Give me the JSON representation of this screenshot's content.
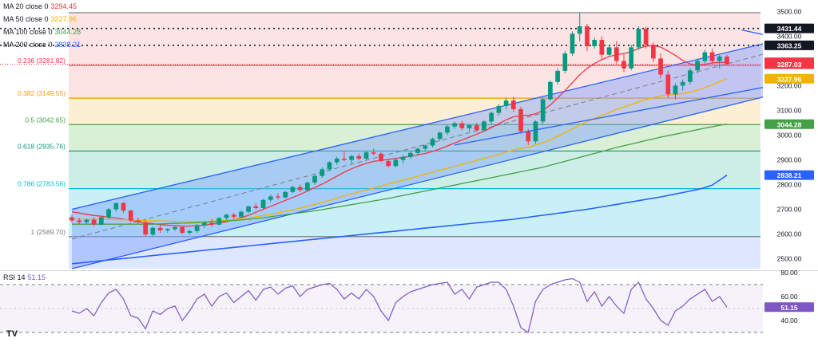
{
  "legend": {
    "ma20": {
      "label": "MA 20 close 0",
      "value": "3294.45",
      "color": "#f23645"
    },
    "ma50": {
      "label": "MA 50 close 0",
      "value": "3227.96",
      "color": "#f0b400"
    },
    "ma100": {
      "label": "MA 100 close 0",
      "value": "3044.28",
      "color": "#43a047"
    },
    "ma200": {
      "label": "MA 200 close 0",
      "value": "2838.21",
      "color": "#2962ff"
    }
  },
  "rsi_legend": {
    "label": "RSI 14",
    "value": "51.15"
  },
  "logo_text": "TV",
  "chart_data": {
    "type": "candlestick",
    "y_axis": {
      "min": 2460,
      "max": 3540,
      "ticks": [
        2500,
        2600,
        2700,
        2800,
        2900,
        3000,
        3100,
        3200,
        3300,
        3400,
        3500
      ]
    },
    "fibonacci": [
      {
        "level": "1",
        "value": 2589.7,
        "label": "1 (2589.70)",
        "color": "#787b86",
        "fill": "#e8e8ec"
      },
      {
        "level": "0.786",
        "value": 2783.56,
        "label": "0.786 (2783.56)",
        "color": "#00bcd4",
        "fill": "#c9f0f6"
      },
      {
        "level": "0.618",
        "value": 2935.76,
        "label": "0.618 (2935.76)",
        "color": "#089981",
        "fill": "#cdeee6"
      },
      {
        "level": "0.5",
        "value": 3042.65,
        "label": "0.5 (3042.65)",
        "color": "#43a047",
        "fill": "#d9efd6"
      },
      {
        "level": "0.382",
        "value": 3149.55,
        "label": "0.382 (3149.55)",
        "color": "#ff9800",
        "fill": "#fdefd4"
      },
      {
        "level": "0.236",
        "value": 3281.82,
        "label": "0.236 (3281.82)",
        "color": "#f23645",
        "fill": "#fde4e4"
      },
      {
        "level": "0",
        "value": 3495.0,
        "label": "",
        "color": "#787b86",
        "fill": "#fde4e4"
      }
    ],
    "below_fib_fill": "#dfe6ff",
    "horizontal_levels": [
      {
        "value": 3431.44,
        "label": "3431.44",
        "color": "#131722",
        "style": "dotted"
      },
      {
        "value": 3363.25,
        "label": "3363.25",
        "color": "#131722",
        "style": "dotted"
      }
    ],
    "price_tags": [
      {
        "value": 3294.45,
        "label": "3294.45",
        "color": "#f23645"
      },
      {
        "value": 3287.03,
        "label": "3287.03",
        "color": "#f23645"
      },
      {
        "value": 3227.96,
        "label": "3227.96",
        "color": "#f0b400"
      },
      {
        "value": 3044.28,
        "label": "3044.28",
        "color": "#43a047"
      },
      {
        "value": 2838.21,
        "label": "2838.21",
        "color": "#2962ff"
      }
    ],
    "current_price": 3287.03,
    "channel": {
      "upper": [
        [
          0,
          2700
        ],
        [
          115,
          3520
        ]
      ],
      "lower": [
        [
          0,
          2460
        ],
        [
          115,
          3310
        ]
      ],
      "mid": [
        [
          0,
          2580
        ],
        [
          115,
          3495
        ]
      ],
      "fill": "#7aa0ff"
    },
    "trendlines": [
      {
        "from": [
          52,
          2960
        ],
        "to": [
          115,
          3310
        ],
        "color": "#2962ff"
      },
      {
        "from": [
          91,
          3425
        ],
        "to": [
          115,
          3275
        ],
        "color": "#2962ff"
      }
    ],
    "candles_ohlc": [
      [
        2668,
        2678,
        2645,
        2655
      ],
      [
        2655,
        2665,
        2638,
        2648
      ],
      [
        2648,
        2662,
        2640,
        2658
      ],
      [
        2658,
        2668,
        2632,
        2638
      ],
      [
        2638,
        2672,
        2635,
        2668
      ],
      [
        2668,
        2705,
        2660,
        2700
      ],
      [
        2700,
        2728,
        2690,
        2725
      ],
      [
        2725,
        2730,
        2685,
        2695
      ],
      [
        2695,
        2698,
        2648,
        2655
      ],
      [
        2655,
        2665,
        2640,
        2648
      ],
      [
        2648,
        2655,
        2590,
        2598
      ],
      [
        2598,
        2630,
        2590,
        2625
      ],
      [
        2625,
        2635,
        2605,
        2615
      ],
      [
        2615,
        2625,
        2605,
        2620
      ],
      [
        2620,
        2632,
        2612,
        2628
      ],
      [
        2628,
        2632,
        2600,
        2605
      ],
      [
        2605,
        2618,
        2598,
        2612
      ],
      [
        2612,
        2640,
        2605,
        2635
      ],
      [
        2635,
        2650,
        2625,
        2645
      ],
      [
        2645,
        2660,
        2630,
        2638
      ],
      [
        2638,
        2668,
        2635,
        2665
      ],
      [
        2665,
        2682,
        2658,
        2678
      ],
      [
        2678,
        2685,
        2660,
        2670
      ],
      [
        2670,
        2695,
        2665,
        2690
      ],
      [
        2690,
        2715,
        2685,
        2712
      ],
      [
        2712,
        2725,
        2700,
        2705
      ],
      [
        2705,
        2742,
        2700,
        2738
      ],
      [
        2738,
        2760,
        2730,
        2752
      ],
      [
        2752,
        2765,
        2740,
        2748
      ],
      [
        2748,
        2775,
        2745,
        2770
      ],
      [
        2770,
        2795,
        2765,
        2790
      ],
      [
        2790,
        2800,
        2770,
        2778
      ],
      [
        2778,
        2812,
        2772,
        2808
      ],
      [
        2808,
        2840,
        2800,
        2835
      ],
      [
        2835,
        2870,
        2828,
        2862
      ],
      [
        2862,
        2895,
        2855,
        2890
      ],
      [
        2890,
        2912,
        2880,
        2905
      ],
      [
        2905,
        2935,
        2895,
        2900
      ],
      [
        2900,
        2920,
        2885,
        2915
      ],
      [
        2915,
        2925,
        2898,
        2905
      ],
      [
        2905,
        2935,
        2900,
        2930
      ],
      [
        2930,
        2945,
        2918,
        2925
      ],
      [
        2925,
        2930,
        2890,
        2895
      ],
      [
        2895,
        2900,
        2870,
        2875
      ],
      [
        2875,
        2905,
        2870,
        2900
      ],
      [
        2900,
        2920,
        2885,
        2912
      ],
      [
        2912,
        2935,
        2905,
        2928
      ],
      [
        2928,
        2950,
        2920,
        2945
      ],
      [
        2945,
        2962,
        2935,
        2958
      ],
      [
        2958,
        2990,
        2950,
        2985
      ],
      [
        2985,
        3015,
        2978,
        3010
      ],
      [
        3010,
        3040,
        3000,
        3035
      ],
      [
        3035,
        3055,
        3025,
        3048
      ],
      [
        3048,
        3058,
        3020,
        3028
      ],
      [
        3028,
        3045,
        3015,
        3040
      ],
      [
        3040,
        3050,
        3015,
        3020
      ],
      [
        3020,
        3060,
        3015,
        3055
      ],
      [
        3055,
        3095,
        3045,
        3090
      ],
      [
        3090,
        3125,
        3080,
        3118
      ],
      [
        3118,
        3150,
        3105,
        3140
      ],
      [
        3140,
        3155,
        3095,
        3105
      ],
      [
        3105,
        3115,
        3005,
        3015
      ],
      [
        3015,
        3025,
        2960,
        2975
      ],
      [
        2975,
        3060,
        2965,
        3055
      ],
      [
        3055,
        3150,
        3045,
        3145
      ],
      [
        3145,
        3220,
        3140,
        3215
      ],
      [
        3215,
        3270,
        3205,
        3260
      ],
      [
        3260,
        3340,
        3250,
        3330
      ],
      [
        3330,
        3420,
        3320,
        3410
      ],
      [
        3410,
        3495,
        3380,
        3440
      ],
      [
        3440,
        3450,
        3340,
        3360
      ],
      [
        3360,
        3395,
        3350,
        3385
      ],
      [
        3385,
        3400,
        3310,
        3325
      ],
      [
        3325,
        3365,
        3318,
        3355
      ],
      [
        3355,
        3380,
        3290,
        3300
      ],
      [
        3300,
        3330,
        3255,
        3270
      ],
      [
        3270,
        3365,
        3262,
        3355
      ],
      [
        3355,
        3440,
        3345,
        3430
      ],
      [
        3430,
        3438,
        3350,
        3365
      ],
      [
        3365,
        3375,
        3295,
        3310
      ],
      [
        3310,
        3330,
        3230,
        3245
      ],
      [
        3245,
        3260,
        3150,
        3165
      ],
      [
        3165,
        3210,
        3145,
        3200
      ],
      [
        3200,
        3225,
        3180,
        3215
      ],
      [
        3215,
        3270,
        3205,
        3262
      ],
      [
        3262,
        3310,
        3250,
        3300
      ],
      [
        3300,
        3345,
        3290,
        3335
      ],
      [
        3335,
        3350,
        3290,
        3300
      ],
      [
        3300,
        3325,
        3270,
        3318
      ],
      [
        3318,
        3325,
        3280,
        3287
      ]
    ],
    "rsi": {
      "range": [
        20,
        80
      ],
      "ticks": [
        40,
        60,
        80
      ],
      "overbought": 70,
      "oversold": 30,
      "current": 51.15,
      "values": [
        48,
        46,
        50,
        44,
        55,
        63,
        66,
        58,
        44,
        42,
        33,
        48,
        45,
        50,
        52,
        40,
        48,
        58,
        62,
        52,
        60,
        63,
        55,
        60,
        65,
        57,
        66,
        68,
        62,
        67,
        69,
        60,
        66,
        68,
        70,
        71,
        66,
        58,
        63,
        58,
        66,
        60,
        48,
        40,
        55,
        60,
        64,
        66,
        68,
        70,
        71,
        72,
        62,
        66,
        58,
        68,
        70,
        72,
        72,
        66,
        52,
        34,
        30,
        56,
        66,
        70,
        72,
        74,
        75,
        72,
        56,
        64,
        52,
        60,
        52,
        46,
        66,
        72,
        58,
        50,
        40,
        36,
        48,
        52,
        58,
        62,
        66,
        56,
        60,
        51
      ]
    },
    "ma_series": {
      "ma20": [
        2690,
        2685,
        2680,
        2675,
        2672,
        2668,
        2665,
        2660,
        2656,
        2650,
        2646,
        2642,
        2638,
        2636,
        2634,
        2632,
        2632,
        2634,
        2636,
        2640,
        2644,
        2650,
        2658,
        2666,
        2676,
        2688,
        2700,
        2712,
        2724,
        2736,
        2748,
        2760,
        2774,
        2788,
        2802,
        2818,
        2834,
        2850,
        2864,
        2876,
        2886,
        2894,
        2898,
        2902,
        2906,
        2910,
        2914,
        2920,
        2926,
        2934,
        2944,
        2956,
        2968,
        2980,
        2992,
        3004,
        3016,
        3030,
        3046,
        3062,
        3074,
        3078,
        3080,
        3086,
        3100,
        3122,
        3150,
        3180,
        3212,
        3244,
        3270,
        3290,
        3306,
        3318,
        3325,
        3330,
        3338,
        3350,
        3360,
        3362,
        3356,
        3340,
        3322,
        3302,
        3288,
        3282,
        3286,
        3292,
        3294,
        3294.45
      ],
      "ma50": [
        2660,
        2660,
        2660,
        2660,
        2660,
        2659,
        2658,
        2658,
        2657,
        2656,
        2655,
        2654,
        2653,
        2652,
        2651,
        2650,
        2650,
        2650,
        2651,
        2652,
        2654,
        2656,
        2659,
        2662,
        2666,
        2670,
        2675,
        2680,
        2686,
        2692,
        2698,
        2705,
        2712,
        2720,
        2728,
        2736,
        2745,
        2754,
        2762,
        2770,
        2778,
        2786,
        2794,
        2802,
        2810,
        2818,
        2826,
        2834,
        2842,
        2850,
        2858,
        2866,
        2874,
        2882,
        2890,
        2898,
        2906,
        2914,
        2922,
        2932,
        2940,
        2946,
        2952,
        2960,
        2970,
        2982,
        2995,
        3010,
        3025,
        3040,
        3055,
        3068,
        3080,
        3092,
        3104,
        3114,
        3124,
        3134,
        3144,
        3152,
        3158,
        3162,
        3164,
        3168,
        3174,
        3182,
        3192,
        3204,
        3216,
        3227.96
      ],
      "ma100": [
        2640,
        2640,
        2640,
        2640,
        2640,
        2640,
        2640,
        2640,
        2640,
        2640,
        2640,
        2640,
        2641,
        2642,
        2643,
        2644,
        2645,
        2646,
        2647,
        2649,
        2651,
        2653,
        2655,
        2657,
        2660,
        2663,
        2666,
        2670,
        2674,
        2678,
        2682,
        2686,
        2690,
        2694,
        2699,
        2704,
        2709,
        2714,
        2719,
        2724,
        2729,
        2734,
        2739,
        2744,
        2750,
        2756,
        2762,
        2768,
        2774,
        2780,
        2786,
        2792,
        2798,
        2804,
        2810,
        2816,
        2822,
        2828,
        2834,
        2840,
        2846,
        2852,
        2858,
        2864,
        2870,
        2878,
        2886,
        2894,
        2902,
        2910,
        2918,
        2926,
        2934,
        2942,
        2950,
        2957,
        2964,
        2971,
        2978,
        2985,
        2992,
        2998,
        3004,
        3010,
        3016,
        3022,
        3028,
        3034,
        3040,
        3044.28
      ],
      "ma200": [
        2480,
        2483,
        2486,
        2489,
        2492,
        2495,
        2498,
        2501,
        2504,
        2507,
        2510,
        2513,
        2516,
        2519,
        2522,
        2525,
        2528,
        2531,
        2534,
        2537,
        2540,
        2543,
        2546,
        2549,
        2552,
        2555,
        2558,
        2561,
        2564,
        2567,
        2570,
        2573,
        2576,
        2579,
        2582,
        2585,
        2588,
        2591,
        2594,
        2597,
        2600,
        2603,
        2606,
        2609,
        2612,
        2615,
        2618,
        2621,
        2624,
        2627,
        2630,
        2633,
        2636,
        2639,
        2642,
        2645,
        2648,
        2651,
        2654,
        2657,
        2660,
        2664,
        2668,
        2672,
        2676,
        2680,
        2684,
        2688,
        2692,
        2696,
        2700,
        2705,
        2710,
        2715,
        2720,
        2725,
        2730,
        2735,
        2740,
        2745,
        2750,
        2756,
        2762,
        2768,
        2774,
        2780,
        2788,
        2798,
        2818,
        2838.21
      ]
    }
  }
}
